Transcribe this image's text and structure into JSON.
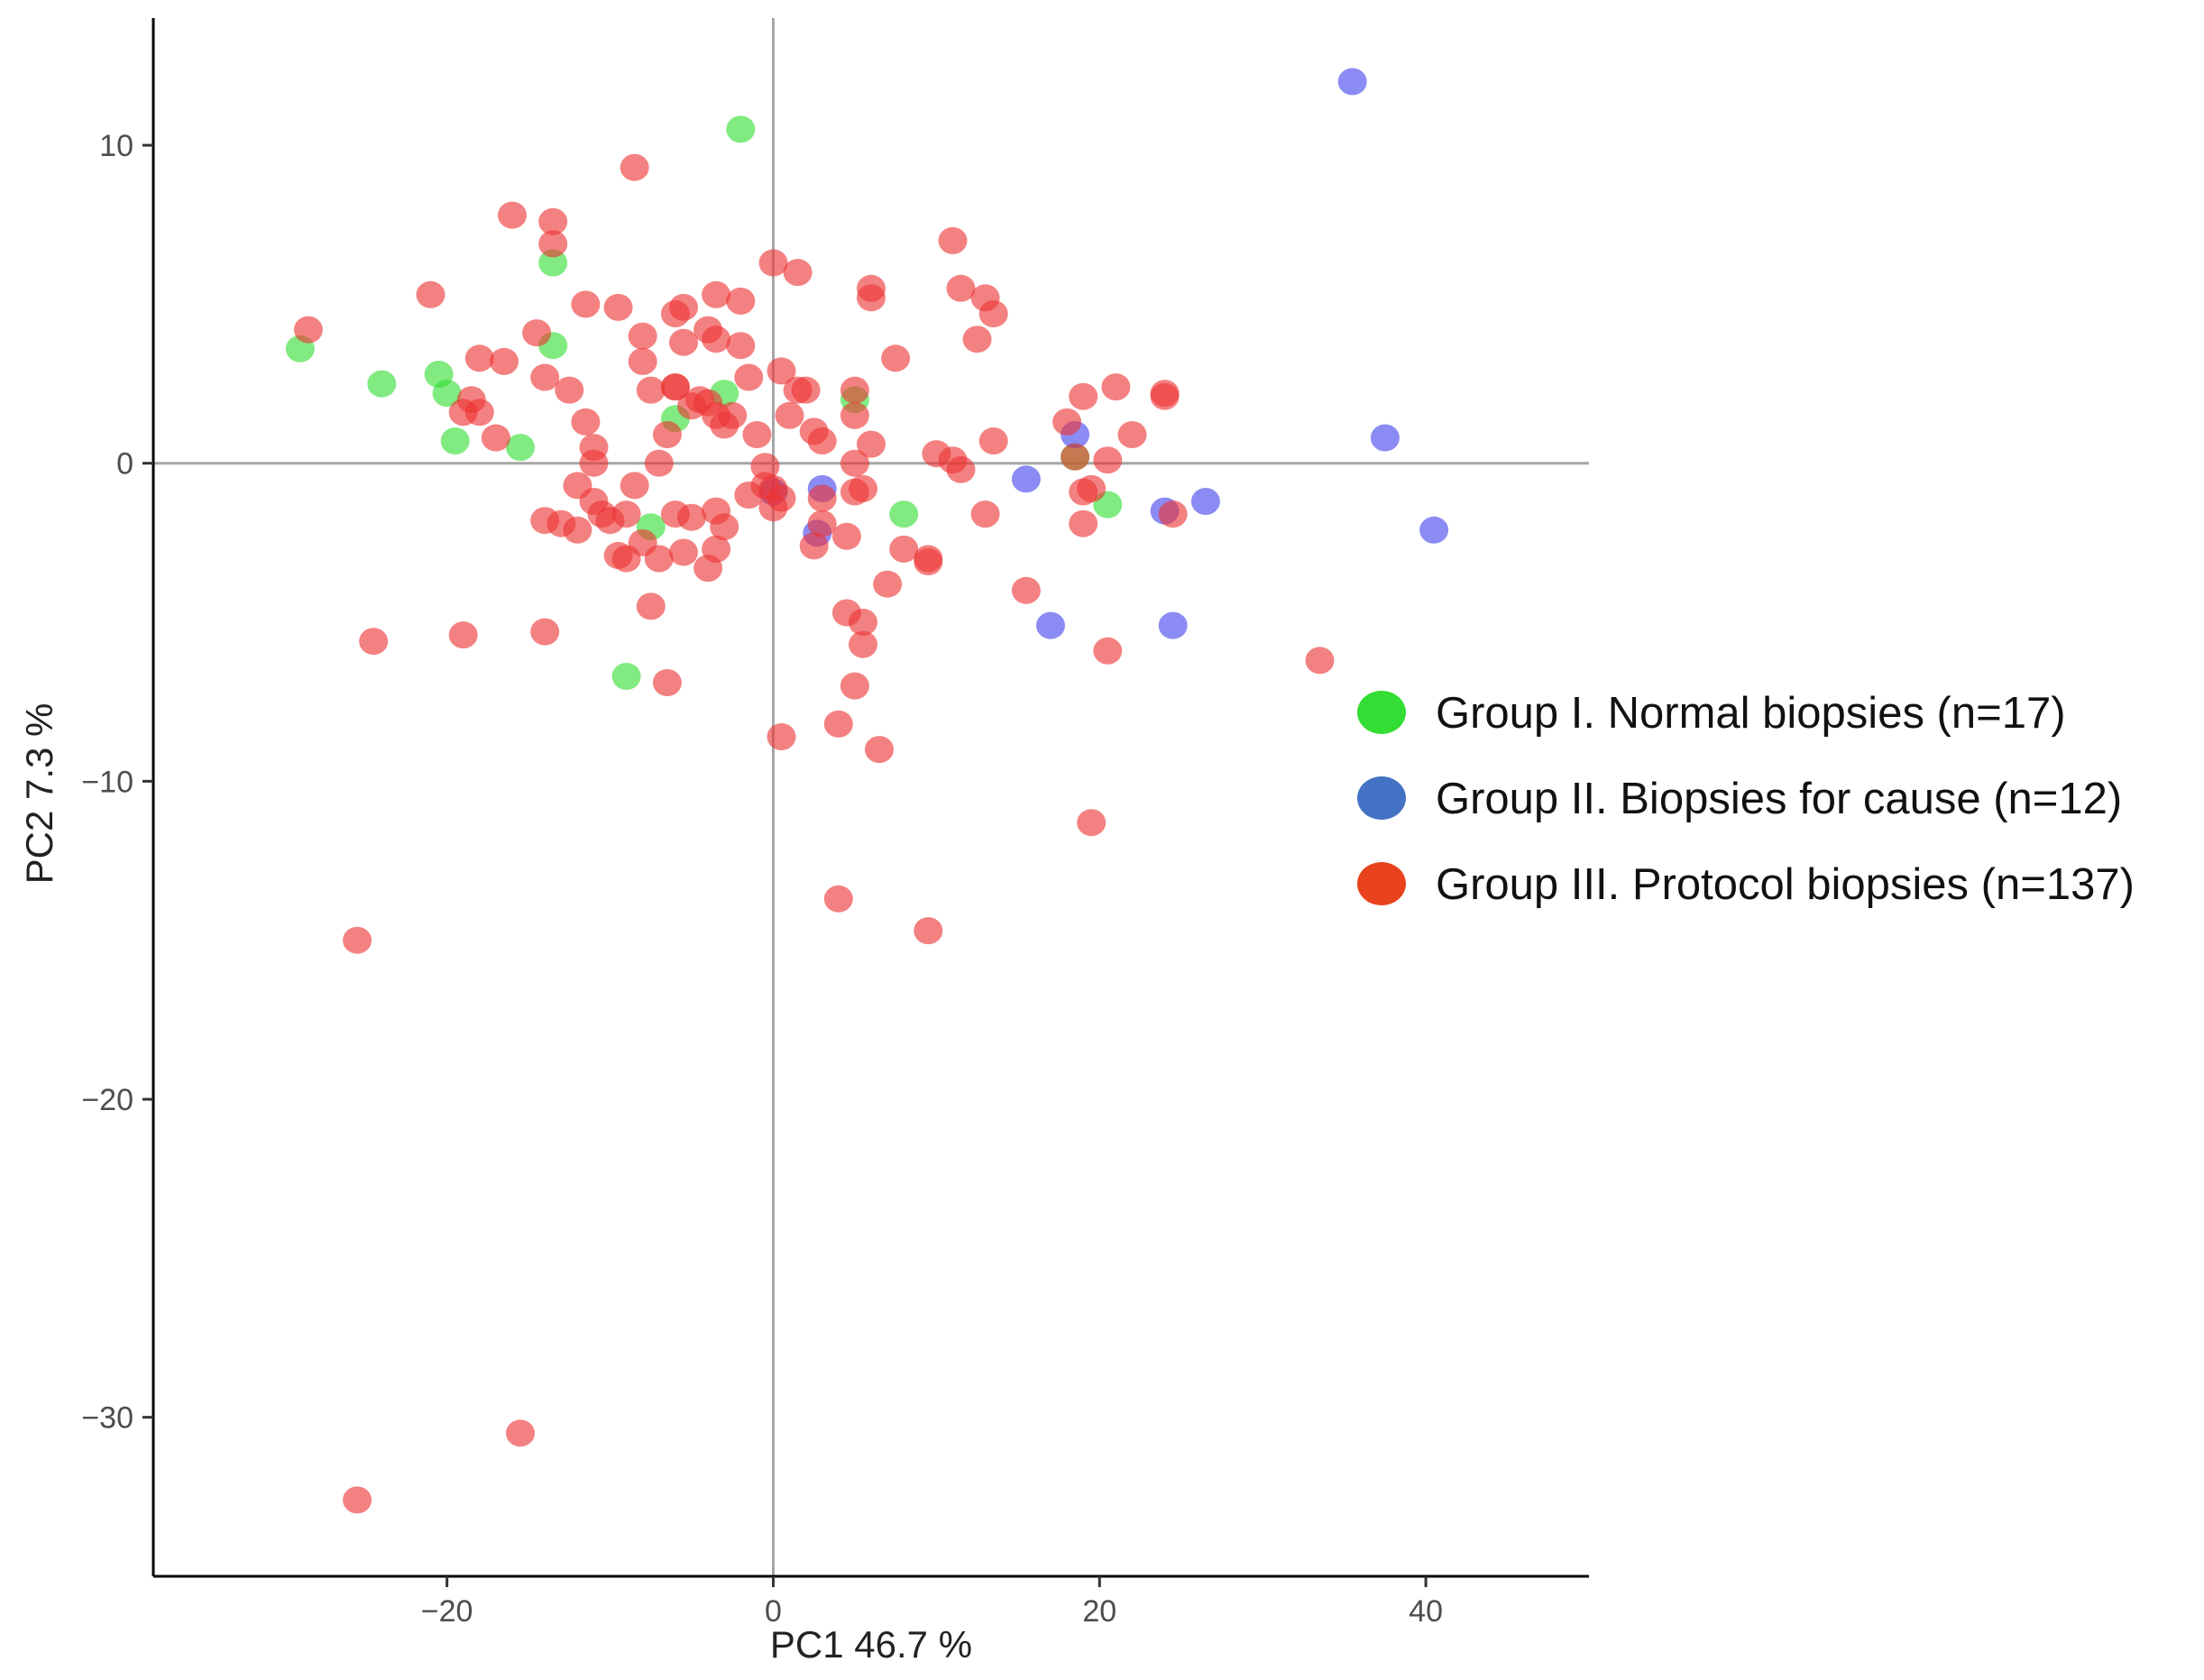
{
  "chart_data": {
    "type": "scatter",
    "title": "",
    "xlabel": "PC1 46.7 %",
    "ylabel": "PC2 7.3 %",
    "xlim": [
      -38,
      50
    ],
    "ylim": [
      -35,
      14
    ],
    "x_ticks": [
      -20,
      0,
      20,
      40
    ],
    "y_ticks": [
      10,
      0,
      -10,
      -20,
      -30
    ],
    "x_tick_labels": [
      "−20",
      "0",
      "20",
      "40"
    ],
    "y_tick_labels": [
      "10",
      "0",
      "−10",
      "−20",
      "−30"
    ],
    "zero_reference_lines": true,
    "grid": false,
    "legend_position": "right",
    "series": [
      {
        "name": "Group I. Normal biopsies (n=17)",
        "point_color": "#33dd33",
        "legend_color": "#33dd33",
        "x": [
          -2.0,
          -13.5,
          -13.5,
          -29.0,
          -24.0,
          -20.5,
          -20.0,
          -19.5,
          -15.5,
          -6.0,
          -3.0,
          5.0,
          8.0,
          -7.5,
          -9.0,
          20.5,
          18.5
        ],
        "y": [
          10.5,
          6.3,
          3.7,
          3.6,
          2.5,
          2.8,
          2.2,
          0.7,
          0.5,
          1.4,
          2.2,
          2.0,
          -1.6,
          -2.0,
          -6.7,
          -1.3,
          0.2
        ]
      },
      {
        "name": "Group II. Biopsies for cause (n=12)",
        "point_color": "#4444ee",
        "legend_color": "#4472c4",
        "x": [
          35.5,
          37.5,
          40.5,
          26.5,
          24.0,
          24.5,
          17.0,
          15.5,
          18.5,
          3.0,
          0.0,
          2.7
        ],
        "y": [
          12.0,
          0.8,
          -2.1,
          -1.2,
          -1.5,
          -5.1,
          -5.1,
          -0.5,
          0.9,
          -0.8,
          -0.9,
          -2.2
        ]
      },
      {
        "name": "Group III. Protocol biopsies (n=137)",
        "point_color": "#ee3333",
        "legend_color": "#e8431c",
        "x": [
          -8.5,
          -16.0,
          -13.5,
          -13.5,
          -21.0,
          -28.5,
          -14.5,
          -11.5,
          -9.5,
          -8.0,
          -6.0,
          -5.5,
          -3.5,
          -2.0,
          0.0,
          1.5,
          6.0,
          6.0,
          11.0,
          11.5,
          13.0,
          13.5,
          12.5,
          -16.5,
          -18.0,
          -18.5,
          -19.0,
          -18.0,
          -17.0,
          -14.0,
          -12.5,
          -11.5,
          -11.0,
          -11.0,
          -12.0,
          -11.0,
          -10.0,
          -13.0,
          -14.0,
          -12.0,
          -10.5,
          -9.0,
          -8.5,
          -8.0,
          -7.5,
          -7.0,
          -6.5,
          -6.0,
          -6.0,
          -5.5,
          -5.0,
          -4.5,
          -4.0,
          -4.0,
          -3.5,
          -3.5,
          -3.0,
          -2.5,
          -2.0,
          -1.5,
          -1.0,
          -0.5,
          0.0,
          0.5,
          1.0,
          1.5,
          2.0,
          2.5,
          3.0,
          3.0,
          4.5,
          5.0,
          5.0,
          5.0,
          5.5,
          6.0,
          7.5,
          10.0,
          11.0,
          11.5,
          13.5,
          13.0,
          18.0,
          19.0,
          21.0,
          24.0,
          24.0,
          22.0,
          20.5,
          19.5,
          19.0,
          18.5,
          19.0,
          24.5,
          9.5,
          8.0,
          7.0,
          4.5,
          5.5,
          3.0,
          2.5,
          0.5,
          0.0,
          -0.5,
          -1.5,
          -3.0,
          -3.5,
          -4.0,
          -5.0,
          -6.0,
          -7.5,
          -8.0,
          -9.0,
          -9.5,
          -7.0,
          -6.5,
          -5.5,
          -3.5,
          5.5,
          5.0,
          15.5,
          20.5,
          33.5,
          0.5,
          4.0,
          6.5,
          19.5,
          4.0,
          9.5,
          -25.5,
          -15.5,
          -25.5,
          -24.5,
          -19.0,
          -14.0,
          9.5,
          5.0
        ],
        "y": [
          9.3,
          7.8,
          7.6,
          6.9,
          5.3,
          4.2,
          4.1,
          5.0,
          4.9,
          4.0,
          4.7,
          4.9,
          5.3,
          5.1,
          6.3,
          6.0,
          5.5,
          5.2,
          7.0,
          5.5,
          5.2,
          4.7,
          3.9,
          3.2,
          3.3,
          2.0,
          1.6,
          1.6,
          0.8,
          2.7,
          2.3,
          1.3,
          0.5,
          0.0,
          -0.7,
          -1.2,
          -1.8,
          -1.9,
          -1.8,
          -2.1,
          -1.6,
          -3.0,
          -0.7,
          3.2,
          2.3,
          0.0,
          0.9,
          2.4,
          2.4,
          3.8,
          1.8,
          2.0,
          1.9,
          4.2,
          3.9,
          1.5,
          1.2,
          1.5,
          3.7,
          2.7,
          0.9,
          -0.1,
          -0.8,
          2.9,
          1.5,
          2.3,
          2.3,
          1.0,
          -1.1,
          0.7,
          -2.3,
          2.3,
          1.5,
          0.0,
          -0.8,
          0.6,
          3.3,
          0.3,
          0.1,
          -0.2,
          0.7,
          -1.6,
          1.3,
          2.1,
          2.4,
          2.1,
          2.2,
          0.9,
          0.1,
          -0.8,
          -1.9,
          0.2,
          -0.9,
          -1.6,
          -3.1,
          -2.7,
          -3.8,
          -4.7,
          -5.0,
          -1.9,
          -2.6,
          -1.1,
          -1.4,
          -0.7,
          -1.0,
          -2.0,
          -2.7,
          -3.3,
          -1.7,
          -1.6,
          -4.5,
          -2.5,
          -1.6,
          -2.9,
          -3.0,
          -6.9,
          -2.8,
          -1.5,
          -5.7,
          -7.0,
          -4.0,
          -5.9,
          -6.2,
          -8.6,
          -8.2,
          -9.0,
          -11.3,
          -13.7,
          -14.7,
          -15.0,
          -30.5,
          -32.6,
          -5.6,
          -5.4,
          -5.3,
          -3.0,
          -0.9
        ]
      }
    ]
  }
}
